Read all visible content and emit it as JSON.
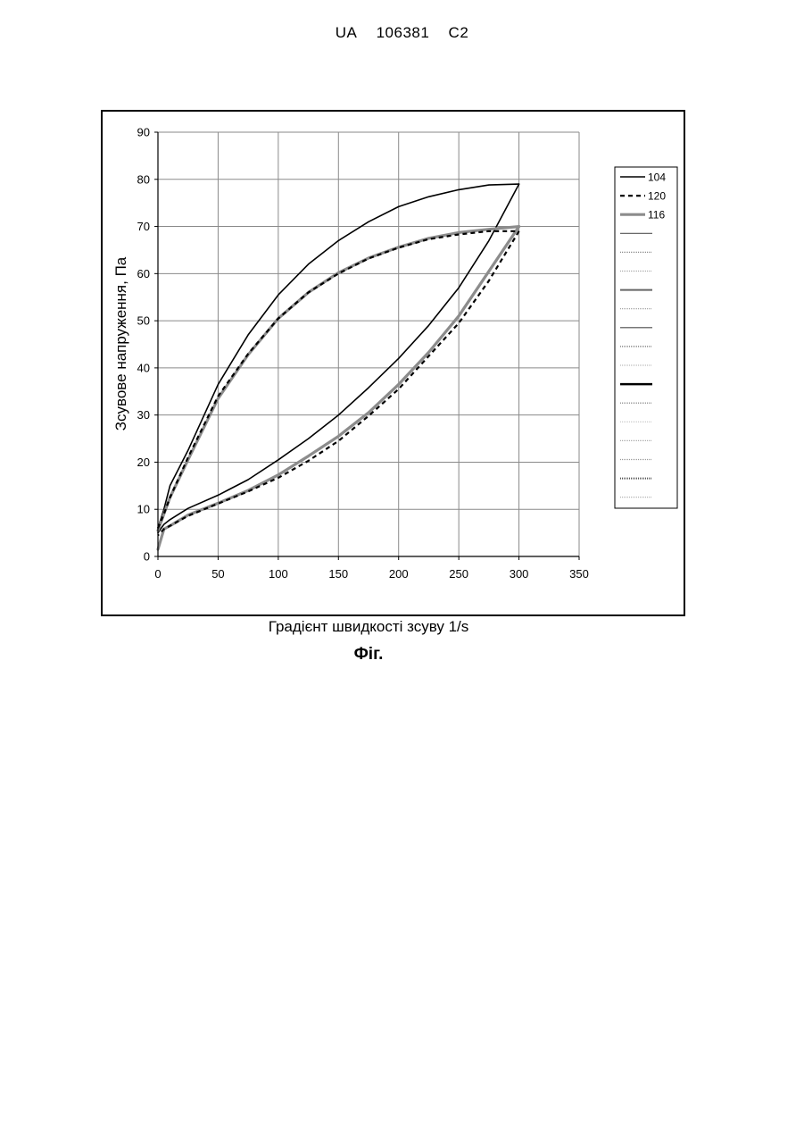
{
  "header": {
    "country": "UA",
    "number": "106381",
    "kind": "C2"
  },
  "figure_caption": "Фіг.",
  "chart_data": {
    "type": "line",
    "title": "",
    "xlabel": "Градієнт швидкості зсуву 1/s",
    "ylabel": "Зсувове напруження, Па",
    "xlim": [
      0,
      350
    ],
    "ylim": [
      0,
      90
    ],
    "xticks": [
      "0",
      "50",
      "100",
      "150",
      "200",
      "250",
      "300",
      "350"
    ],
    "yticks": [
      "0",
      "10",
      "20",
      "30",
      "40",
      "50",
      "60",
      "70",
      "80",
      "90"
    ],
    "grid": true,
    "legend_position": "right",
    "series": [
      {
        "name": "104",
        "color": "#000000",
        "style": "solid",
        "up": [
          [
            0,
            6
          ],
          [
            5,
            10
          ],
          [
            10,
            15
          ],
          [
            25,
            22.5
          ],
          [
            50,
            36.5
          ],
          [
            75,
            47
          ],
          [
            100,
            55.5
          ],
          [
            125,
            62
          ],
          [
            150,
            67
          ],
          [
            175,
            71
          ],
          [
            200,
            74.2
          ],
          [
            225,
            76.3
          ],
          [
            250,
            77.8
          ],
          [
            275,
            78.8
          ],
          [
            300,
            79
          ]
        ],
        "down": [
          [
            300,
            79
          ],
          [
            275,
            67
          ],
          [
            250,
            57
          ],
          [
            225,
            49
          ],
          [
            200,
            42
          ],
          [
            175,
            35.8
          ],
          [
            150,
            30
          ],
          [
            125,
            25
          ],
          [
            100,
            20.5
          ],
          [
            75,
            16.3
          ],
          [
            50,
            13
          ],
          [
            25,
            10.2
          ],
          [
            10,
            7.8
          ],
          [
            5,
            6.8
          ],
          [
            0,
            5
          ]
        ]
      },
      {
        "name": "120",
        "color": "#000000",
        "style": "dashed",
        "up": [
          [
            0,
            6
          ],
          [
            5,
            9
          ],
          [
            10,
            12.5
          ],
          [
            25,
            21
          ],
          [
            50,
            34
          ],
          [
            75,
            43
          ],
          [
            100,
            50.5
          ],
          [
            125,
            56
          ],
          [
            150,
            60
          ],
          [
            175,
            63.2
          ],
          [
            200,
            65.5
          ],
          [
            225,
            67.3
          ],
          [
            250,
            68.3
          ],
          [
            275,
            69
          ],
          [
            300,
            69
          ]
        ],
        "down": [
          [
            300,
            69
          ],
          [
            275,
            58.5
          ],
          [
            250,
            49.5
          ],
          [
            225,
            42.5
          ],
          [
            200,
            35.5
          ],
          [
            175,
            29.8
          ],
          [
            150,
            24.5
          ],
          [
            125,
            20.3
          ],
          [
            100,
            16.7
          ],
          [
            75,
            13.8
          ],
          [
            50,
            11.2
          ],
          [
            25,
            8.6
          ],
          [
            10,
            6.5
          ],
          [
            5,
            5.8
          ],
          [
            0,
            4.5
          ]
        ]
      },
      {
        "name": "116",
        "color": "#8c8c8c",
        "style": "solid",
        "up": [
          [
            0,
            5.5
          ],
          [
            5,
            9
          ],
          [
            10,
            12.5
          ],
          [
            25,
            20.5
          ],
          [
            50,
            33.5
          ],
          [
            75,
            42.8
          ],
          [
            100,
            50.5
          ],
          [
            125,
            56
          ],
          [
            150,
            60.2
          ],
          [
            175,
            63.3
          ],
          [
            200,
            65.6
          ],
          [
            225,
            67.5
          ],
          [
            250,
            68.7
          ],
          [
            275,
            69.4
          ],
          [
            300,
            70
          ]
        ],
        "down": [
          [
            300,
            70
          ],
          [
            275,
            60.5
          ],
          [
            250,
            51
          ],
          [
            225,
            43.3
          ],
          [
            200,
            36.5
          ],
          [
            175,
            30.5
          ],
          [
            150,
            25.5
          ],
          [
            125,
            21.3
          ],
          [
            100,
            17.3
          ],
          [
            75,
            14
          ],
          [
            50,
            11.3
          ],
          [
            25,
            8.8
          ],
          [
            10,
            6.5
          ],
          [
            5,
            5.8
          ],
          [
            0,
            1.5
          ]
        ]
      }
    ],
    "legend_empty_entries": 15
  }
}
